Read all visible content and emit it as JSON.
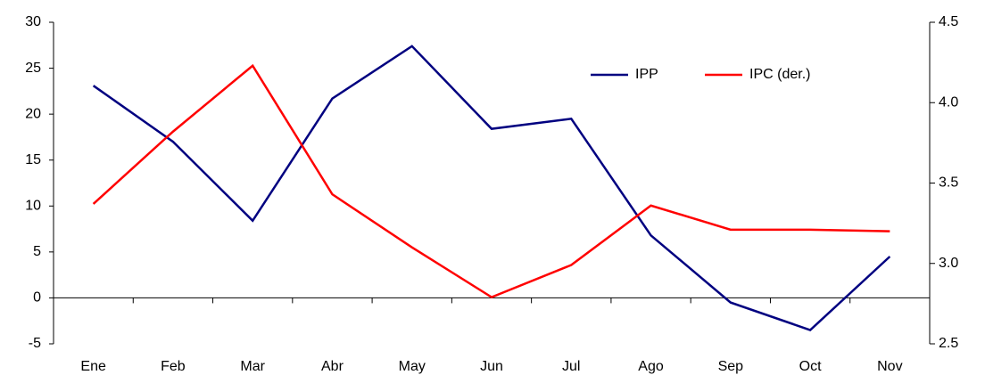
{
  "chart_data": {
    "type": "line",
    "categories": [
      "Ene",
      "Feb",
      "Mar",
      "Abr",
      "May",
      "Jun",
      "Jul",
      "Ago",
      "Sep",
      "Oct",
      "Nov"
    ],
    "series": [
      {
        "name": "IPP",
        "color": "#000080",
        "values": [
          23.1,
          17,
          8.4,
          21.7,
          27.4,
          18.4,
          19.5,
          6.8,
          -0.5,
          -3.5,
          4.5
        ]
      },
      {
        "name": "IPC (der.)",
        "color": "#ff0000",
        "axis": "y2",
        "values": [
          3.37,
          3.82,
          4.23,
          3.43,
          3.1,
          2.79,
          2.99,
          3.36,
          3.21,
          3.21,
          3.2
        ]
      }
    ],
    "ylim": [
      -5,
      30
    ],
    "yticks": [
      -5,
      0,
      5,
      10,
      15,
      20,
      25,
      30
    ],
    "y2lim": [
      2.5,
      4.5
    ],
    "y2ticks": [
      2.5,
      {
        "value": 3,
        "label": "3.0"
      },
      3.5,
      {
        "value": 4,
        "label": "4.0"
      },
      4.5
    ],
    "grid": false,
    "legend": "top-right"
  }
}
